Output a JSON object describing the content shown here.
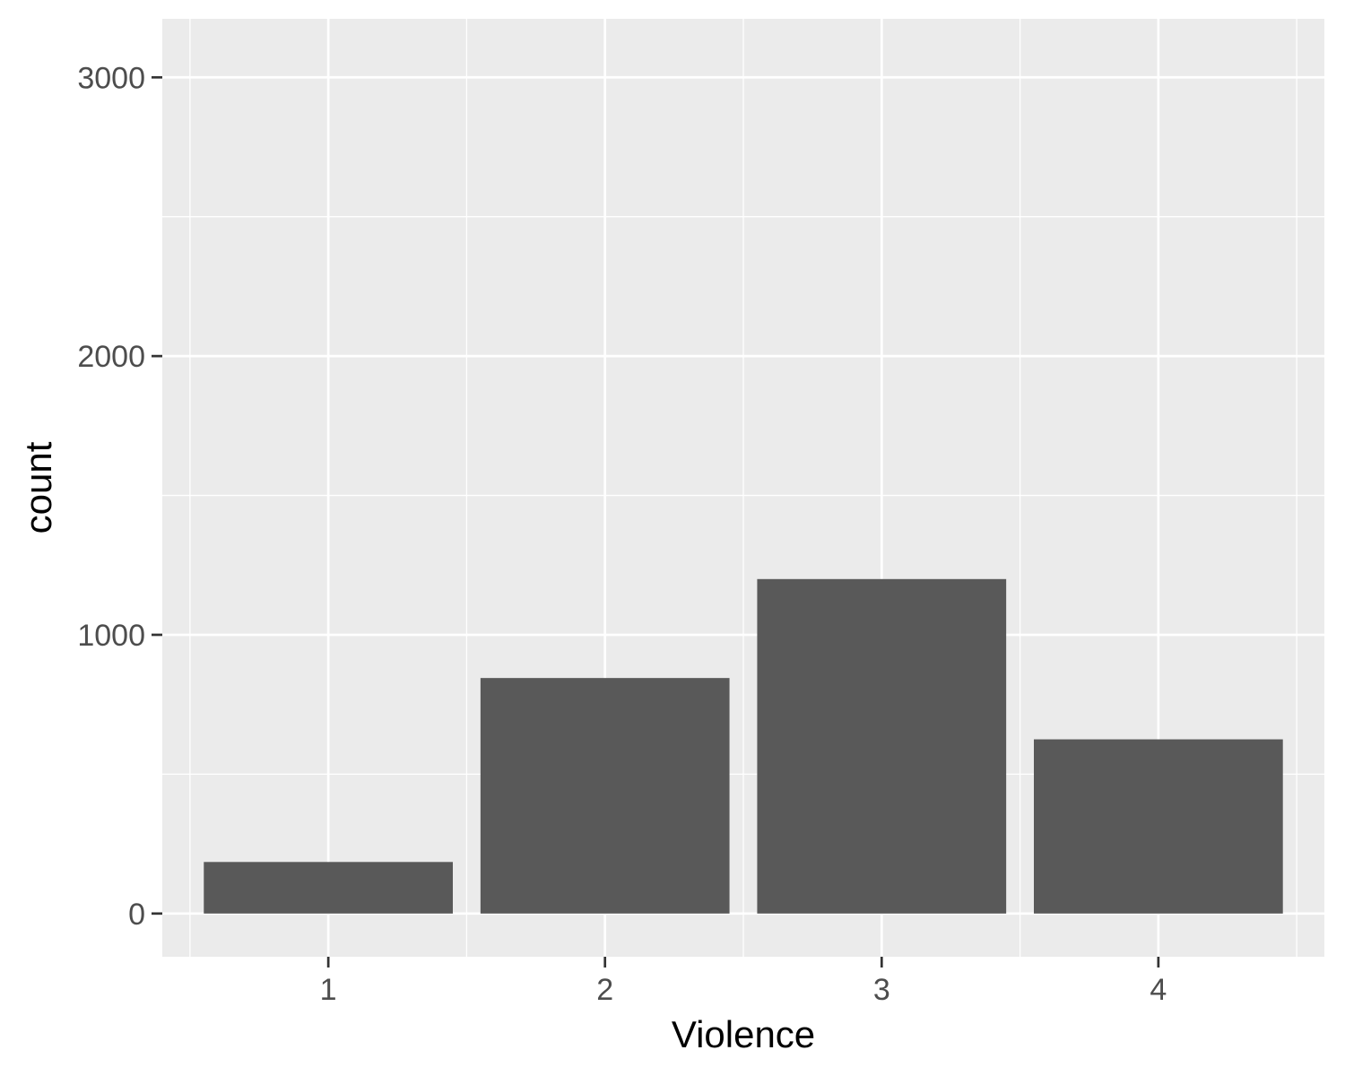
{
  "chart_data": {
    "type": "bar",
    "title": "",
    "xlabel": "Violence",
    "ylabel": "count",
    "categories": [
      "1",
      "2",
      "3",
      "4"
    ],
    "values": [
      185,
      845,
      1200,
      625
    ],
    "ylim": [
      -155,
      3210
    ],
    "y_ticks": [
      0,
      1000,
      2000,
      3000
    ],
    "y_tick_labels": [
      "0",
      "1000",
      "2000",
      "3000"
    ],
    "grid": true,
    "legend": "none",
    "colors": {
      "panel_background": "#ebebeb",
      "grid_line": "#ffffff",
      "bar_fill": "#595959",
      "tick_mark": "#333333"
    }
  }
}
